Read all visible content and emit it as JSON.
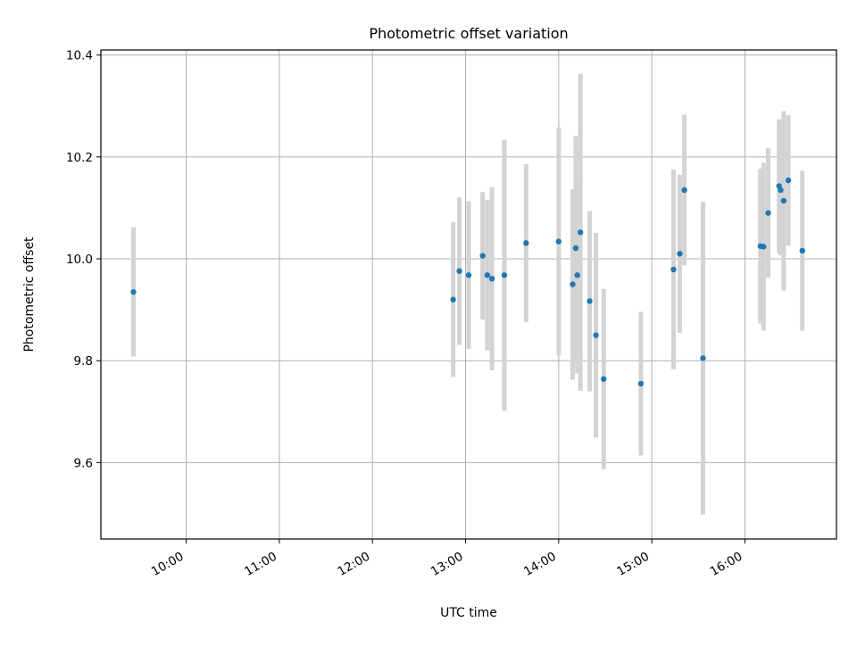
{
  "chart_data": {
    "type": "scatter",
    "title": "Photometric offset variation",
    "xlabel": "UTC time",
    "ylabel": "Photometric offset",
    "x_axis_kind": "time",
    "xlim": [
      "09:05",
      "16:59"
    ],
    "ylim": [
      9.45,
      10.41
    ],
    "xticks": [
      "10:00",
      "11:00",
      "12:00",
      "13:00",
      "14:00",
      "15:00",
      "16:00"
    ],
    "yticks": [
      "9.6",
      "9.8",
      "10.0",
      "10.2",
      "10.4"
    ],
    "grid": true,
    "marker_color": "#1f77b4",
    "errorbar_color": "#d3d3d3",
    "series": [
      {
        "points": [
          {
            "x": "09:26",
            "y": 9.935,
            "err": 0.127
          },
          {
            "x": "12:52",
            "y": 9.92,
            "err": 0.152
          },
          {
            "x": "12:56",
            "y": 9.976,
            "err": 0.145
          },
          {
            "x": "13:02",
            "y": 9.968,
            "err": 0.145
          },
          {
            "x": "13:11",
            "y": 10.006,
            "err": 0.125
          },
          {
            "x": "13:14",
            "y": 9.968,
            "err": 0.148
          },
          {
            "x": "13:17",
            "y": 9.961,
            "err": 0.18
          },
          {
            "x": "13:25",
            "y": 9.968,
            "err": 0.266
          },
          {
            "x": "13:39",
            "y": 10.031,
            "err": 0.155
          },
          {
            "x": "14:00",
            "y": 10.034,
            "err": 0.224
          },
          {
            "x": "14:09",
            "y": 9.95,
            "err": 0.187
          },
          {
            "x": "14:11",
            "y": 10.021,
            "err": 0.22
          },
          {
            "x": "14:12",
            "y": 9.968,
            "err": 0.193
          },
          {
            "x": "14:14",
            "y": 10.052,
            "err": 0.311
          },
          {
            "x": "14:20",
            "y": 9.917,
            "err": 0.177
          },
          {
            "x": "14:24",
            "y": 9.85,
            "err": 0.201
          },
          {
            "x": "14:29",
            "y": 9.764,
            "err": 0.177
          },
          {
            "x": "14:53",
            "y": 9.755,
            "err": 0.141
          },
          {
            "x": "15:14",
            "y": 9.979,
            "err": 0.196
          },
          {
            "x": "15:18",
            "y": 10.01,
            "err": 0.155
          },
          {
            "x": "15:21",
            "y": 10.135,
            "err": 0.148
          },
          {
            "x": "15:33",
            "y": 9.805,
            "err": 0.307
          },
          {
            "x": "16:10",
            "y": 10.025,
            "err": 0.152
          },
          {
            "x": "16:12",
            "y": 10.024,
            "err": 0.165
          },
          {
            "x": "16:15",
            "y": 10.09,
            "err": 0.127
          },
          {
            "x": "16:22",
            "y": 10.143,
            "err": 0.131
          },
          {
            "x": "16:23",
            "y": 10.135,
            "err": 0.128
          },
          {
            "x": "16:25",
            "y": 10.114,
            "err": 0.176
          },
          {
            "x": "16:28",
            "y": 10.154,
            "err": 0.128
          },
          {
            "x": "16:37",
            "y": 10.016,
            "err": 0.157
          }
        ]
      }
    ]
  }
}
